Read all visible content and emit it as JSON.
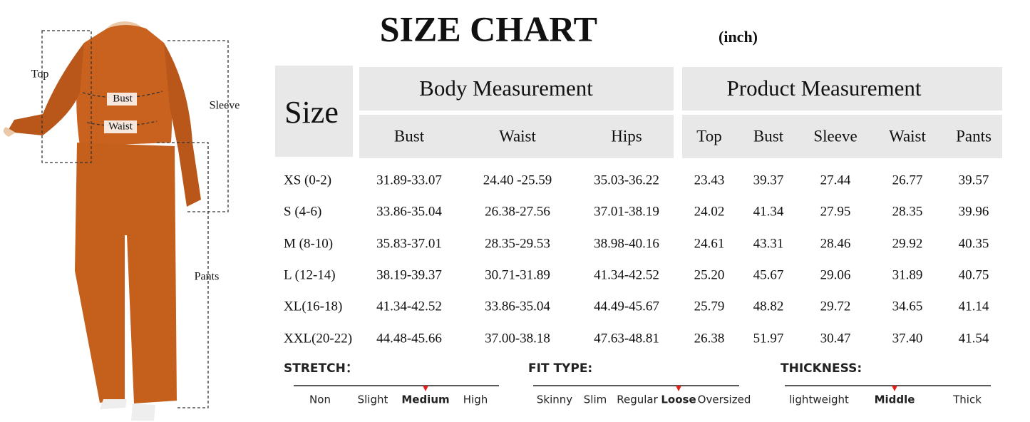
{
  "figure": {
    "labels": {
      "top": "Top",
      "bust": "Bust",
      "waist": "Waist",
      "sleeve": "Sleeve",
      "pants": "Pants"
    }
  },
  "header": {
    "title": "SIZE CHART",
    "unit": "(inch)"
  },
  "table": {
    "size_header": "Size",
    "groups": [
      "Body Measurement",
      "Product Measurement"
    ],
    "columns": [
      "Bust",
      "Waist",
      "Hips",
      "Top",
      "Bust",
      "Sleeve",
      "Waist",
      "Pants"
    ],
    "rows": [
      [
        "XS (0-2)",
        "31.89-33.07",
        "24.40 -25.59",
        "35.03-36.22",
        "23.43",
        "39.37",
        "27.44",
        "26.77",
        "39.57"
      ],
      [
        "S (4-6)",
        "33.86-35.04",
        "26.38-27.56",
        "37.01-38.19",
        "24.02",
        "41.34",
        "27.95",
        "28.35",
        "39.96"
      ],
      [
        "M (8-10)",
        "35.83-37.01",
        "28.35-29.53",
        "38.98-40.16",
        "24.61",
        "43.31",
        "28.46",
        "29.92",
        "40.35"
      ],
      [
        "L (12-14)",
        "38.19-39.37",
        "30.71-31.89",
        "41.34-42.52",
        "25.20",
        "45.67",
        "29.06",
        "31.89",
        "40.75"
      ],
      [
        "XL(16-18)",
        "41.34-42.52",
        "33.86-35.04",
        "44.49-45.67",
        "25.79",
        "48.82",
        "29.72",
        "34.65",
        "41.14"
      ],
      [
        "XXL(20-22)",
        "44.48-45.66",
        "37.00-38.18",
        "47.63-48.81",
        "26.38",
        "51.97",
        "30.47",
        "37.40",
        "41.54"
      ]
    ]
  },
  "scales": [
    {
      "label": "STRETCH：",
      "options": [
        "Non",
        "Slight",
        "Medium",
        "High"
      ],
      "selected": 2
    },
    {
      "label": "FIT TYPE:",
      "options": [
        "Skinny",
        "Slim",
        "Regular",
        "Loose",
        "Oversized"
      ],
      "selected": 3
    },
    {
      "label": "THICKNESS:",
      "options": [
        "lightweight",
        "Middle",
        "Thick"
      ],
      "selected": 1
    }
  ]
}
